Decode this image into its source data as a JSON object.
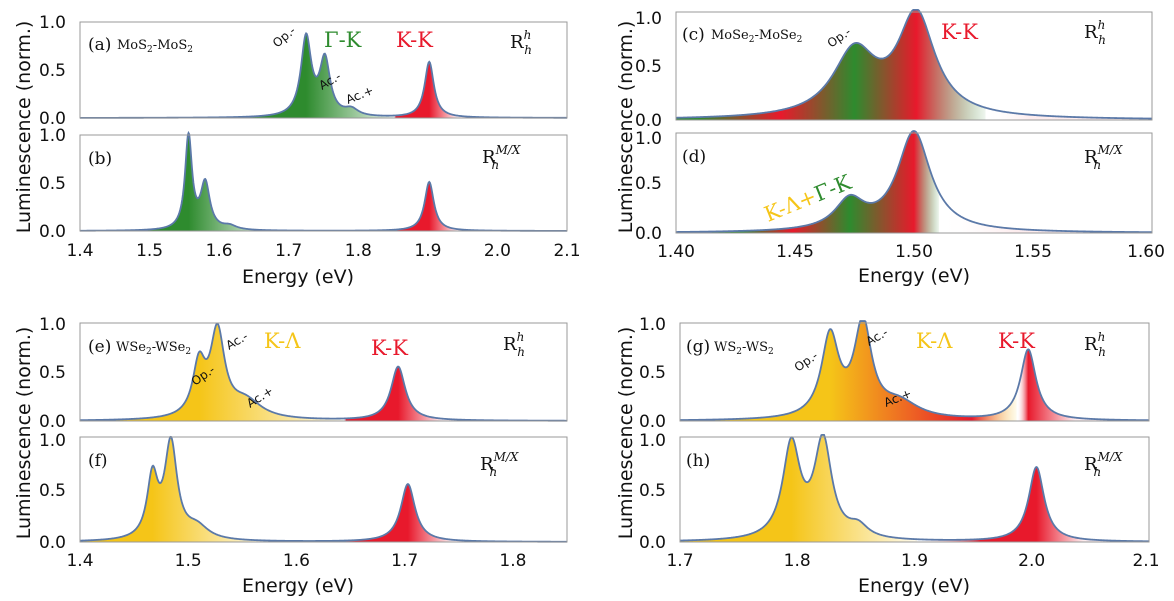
{
  "colors": {
    "line": "#5b79a8",
    "green": "#2e8b2e",
    "yellow": "#f5c518",
    "red": "#e8192c",
    "frame": "#999999"
  },
  "groups": [
    {
      "ylabel": "Luminescence (norm.)",
      "xlabel": "Energy (eV)",
      "xticks": [
        "1.4",
        "1.5",
        "1.6",
        "1.7",
        "1.8",
        "1.9",
        "2.0",
        "2.1"
      ],
      "yticks": [
        "0.0",
        "0.5",
        "1.0"
      ],
      "top": {
        "label": "(a)",
        "stack": "MoS2-MoS2",
        "stack_base": "MoS",
        "stack_sub": "2",
        "stack_sep": "-",
        "r_base": "R",
        "r_sub": "h",
        "r_sup": "h",
        "peaks": [
          {
            "text": "Γ-K",
            "color": "#2e8b2e"
          },
          {
            "text": "K-K",
            "color": "#e8192c"
          }
        ],
        "annotations": [
          "Op.-",
          "Ac.-",
          "Ac.+"
        ]
      },
      "bottom": {
        "label": "(b)",
        "r_base": "R",
        "r_sub": "h",
        "r_sup": "M/X"
      }
    },
    {
      "ylabel": "Luminescence (norm.)",
      "xlabel": "Energy (eV)",
      "xticks": [
        "1.40",
        "1.45",
        "1.50",
        "1.55",
        "1.60"
      ],
      "yticks": [
        "0.0",
        "0.5",
        "1.0"
      ],
      "top": {
        "label": "(c)",
        "stack": "MoSe2-MoSe2",
        "stack_base": "MoSe",
        "stack_sub": "2",
        "stack_sep": "-",
        "r_base": "R",
        "r_sub": "h",
        "r_sup": "h",
        "peaks": [
          {
            "text": "K-K",
            "color": "#e8192c"
          }
        ],
        "annotations": [
          "Op.-"
        ]
      },
      "bottom": {
        "label": "(d)",
        "r_base": "R",
        "r_sub": "h",
        "r_sup": "M/X",
        "peak_a": "K-Λ",
        "peak_plus": "+",
        "peak_b": "Γ-K"
      }
    },
    {
      "ylabel": "Luminescence (norm.)",
      "xlabel": "Energy (eV)",
      "xticks": [
        "1.4",
        "1.5",
        "1.6",
        "1.7",
        "1.8"
      ],
      "yticks": [
        "0.0",
        "0.5",
        "1.0"
      ],
      "top": {
        "label": "(e)",
        "stack": "WSe2-WSe2",
        "stack_base": "WSe",
        "stack_sub": "2",
        "stack_sep": "-",
        "r_base": "R",
        "r_sub": "h",
        "r_sup": "h",
        "peaks": [
          {
            "text": "K-Λ",
            "color": "#f5c518"
          },
          {
            "text": "K-K",
            "color": "#e8192c"
          }
        ],
        "annotations": [
          "Op.-",
          "Ac.-",
          "Ac.+"
        ]
      },
      "bottom": {
        "label": "(f)",
        "r_base": "R",
        "r_sub": "h",
        "r_sup": "M/X"
      }
    },
    {
      "ylabel": "Luminescence (norm.)",
      "xlabel": "Energy (eV)",
      "xticks": [
        "1.7",
        "1.8",
        "1.9",
        "2.0",
        "2.1"
      ],
      "yticks": [
        "0.0",
        "0.5",
        "1.0"
      ],
      "top": {
        "label": "(g)",
        "stack": "WS2-WS2",
        "stack_base": "WS",
        "stack_sub": "2",
        "stack_sep": "-",
        "r_base": "R",
        "r_sub": "h",
        "r_sup": "h",
        "peaks": [
          {
            "text": "K-Λ",
            "color": "#f5c518"
          },
          {
            "text": "K-K",
            "color": "#e8192c"
          }
        ],
        "annotations": [
          "Op.-",
          "Ac.-",
          "Ac.+"
        ]
      },
      "bottom": {
        "label": "(h)",
        "r_base": "R",
        "r_sub": "h",
        "r_sup": "M/X"
      }
    }
  ],
  "chart_data": [
    {
      "id": "a",
      "type": "area",
      "xlim": [
        1.4,
        2.1
      ],
      "ylim": [
        0,
        1
      ],
      "peaks": [
        {
          "x": 1.725,
          "h": 0.82,
          "w": 0.009,
          "c": "green"
        },
        {
          "x": 1.752,
          "h": 0.58,
          "w": 0.009,
          "c": "green"
        },
        {
          "x": 1.79,
          "h": 0.07,
          "w": 0.012,
          "c": "green"
        },
        {
          "x": 1.902,
          "h": 0.58,
          "w": 0.008,
          "c": "red"
        }
      ]
    },
    {
      "id": "b",
      "type": "area",
      "xlim": [
        1.4,
        2.1
      ],
      "ylim": [
        0,
        1
      ],
      "peaks": [
        {
          "x": 1.556,
          "h": 0.98,
          "w": 0.006,
          "c": "green"
        },
        {
          "x": 1.58,
          "h": 0.48,
          "w": 0.008,
          "c": "green"
        },
        {
          "x": 1.615,
          "h": 0.04,
          "w": 0.012,
          "c": "green"
        },
        {
          "x": 1.902,
          "h": 0.51,
          "w": 0.008,
          "c": "red"
        }
      ]
    },
    {
      "id": "c",
      "type": "area",
      "xlim": [
        1.4,
        1.6
      ],
      "ylim": [
        0,
        1
      ],
      "peaks": [
        {
          "x": 1.475,
          "h": 0.6,
          "w": 0.011,
          "c": "green"
        },
        {
          "x": 1.501,
          "h": 0.94,
          "w": 0.0095,
          "c": "red"
        }
      ]
    },
    {
      "id": "d",
      "type": "area",
      "xlim": [
        1.4,
        1.6
      ],
      "ylim": [
        0,
        1
      ],
      "peaks": [
        {
          "x": 1.473,
          "h": 0.29,
          "w": 0.0075,
          "c": "green"
        },
        {
          "x": 1.5,
          "h": 1.0,
          "w": 0.0085,
          "c": "red"
        }
      ]
    },
    {
      "id": "e",
      "type": "area",
      "xlim": [
        1.4,
        1.85
      ],
      "ylim": [
        0,
        1
      ],
      "peaks": [
        {
          "x": 1.51,
          "h": 0.52,
          "w": 0.007,
          "c": "yellow"
        },
        {
          "x": 1.527,
          "h": 0.86,
          "w": 0.008,
          "c": "yellow"
        },
        {
          "x": 1.553,
          "h": 0.18,
          "w": 0.018,
          "c": "yellow"
        },
        {
          "x": 1.694,
          "h": 0.55,
          "w": 0.008,
          "c": "red"
        }
      ]
    },
    {
      "id": "f",
      "type": "area",
      "xlim": [
        1.4,
        1.85
      ],
      "ylim": [
        0,
        1
      ],
      "peaks": [
        {
          "x": 1.467,
          "h": 0.58,
          "w": 0.006,
          "c": "yellow"
        },
        {
          "x": 1.484,
          "h": 0.91,
          "w": 0.007,
          "c": "yellow"
        },
        {
          "x": 1.508,
          "h": 0.12,
          "w": 0.013,
          "c": "yellow"
        },
        {
          "x": 1.703,
          "h": 0.55,
          "w": 0.008,
          "c": "red"
        }
      ]
    },
    {
      "id": "g",
      "type": "area",
      "xlim": [
        1.7,
        2.1
      ],
      "ylim": [
        0,
        1
      ],
      "peaks": [
        {
          "x": 1.828,
          "h": 0.83,
          "w": 0.009,
          "c": "yellow"
        },
        {
          "x": 1.856,
          "h": 0.95,
          "w": 0.009,
          "c": "yellow"
        },
        {
          "x": 1.887,
          "h": 0.16,
          "w": 0.02,
          "c": "yellow"
        },
        {
          "x": 1.997,
          "h": 0.72,
          "w": 0.008,
          "c": "red"
        }
      ]
    },
    {
      "id": "h",
      "type": "area",
      "xlim": [
        1.7,
        2.1
      ],
      "ylim": [
        0,
        1
      ],
      "peaks": [
        {
          "x": 1.795,
          "h": 0.9,
          "w": 0.009,
          "c": "yellow"
        },
        {
          "x": 1.822,
          "h": 0.93,
          "w": 0.009,
          "c": "yellow"
        },
        {
          "x": 1.852,
          "h": 0.11,
          "w": 0.01,
          "c": "yellow"
        },
        {
          "x": 2.004,
          "h": 0.71,
          "w": 0.008,
          "c": "red"
        }
      ]
    }
  ]
}
